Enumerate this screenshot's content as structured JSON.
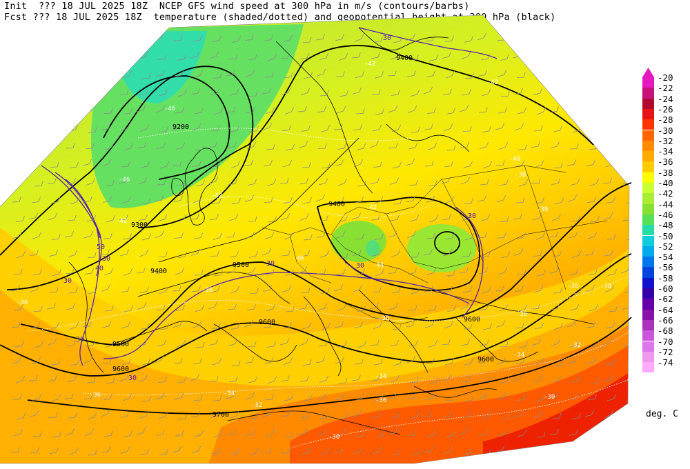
{
  "header": {
    "line1": "Init  ??? 18 JUL 2025 18Z  NCEP GFS wind speed at 300 hPa in m/s (contours/barbs)",
    "line2": "Fcst ??? 18 JUL 2025 18Z  temperature (shaded/dotted) and geopotential height at 300 hPa (black)"
  },
  "legend": {
    "unit": "deg. C",
    "entries": [
      {
        "label": "-20",
        "color": "#e619c0"
      },
      {
        "label": "-22",
        "color": "#c7127a"
      },
      {
        "label": "-24",
        "color": "#b00a2c"
      },
      {
        "label": "-26",
        "color": "#e61414"
      },
      {
        "label": "-28",
        "color": "#ff3300"
      },
      {
        "label": "-30",
        "color": "#ff6600"
      },
      {
        "label": "-32",
        "color": "#ff8c00"
      },
      {
        "label": "-34",
        "color": "#ffaa00"
      },
      {
        "label": "-36",
        "color": "#ffcc00"
      },
      {
        "label": "-38",
        "color": "#ffff00"
      },
      {
        "label": "-40",
        "color": "#ccff33"
      },
      {
        "label": "-42",
        "color": "#aaee33"
      },
      {
        "label": "-44",
        "color": "#88e033"
      },
      {
        "label": "-46",
        "color": "#55e055"
      },
      {
        "label": "-48",
        "color": "#22ddaa"
      },
      {
        "label": "-50",
        "color": "#11ccdd"
      },
      {
        "label": "-52",
        "color": "#00aaee"
      },
      {
        "label": "-54",
        "color": "#0077ee"
      },
      {
        "label": "-56",
        "color": "#0044dd"
      },
      {
        "label": "-58",
        "color": "#1111cc"
      },
      {
        "label": "-60",
        "color": "#3300aa"
      },
      {
        "label": "-62",
        "color": "#6600aa"
      },
      {
        "label": "-64",
        "color": "#8811aa"
      },
      {
        "label": "-66",
        "color": "#aa33bb"
      },
      {
        "label": "-68",
        "color": "#cc55dd"
      },
      {
        "label": "-70",
        "color": "#dd77ee"
      },
      {
        "label": "-72",
        "color": "#ee99ee"
      },
      {
        "label": "-74",
        "color": "#ffaaff"
      }
    ]
  },
  "map": {
    "height_labels": [
      "9200",
      "9300",
      "9400",
      "9400",
      "9500",
      "9500",
      "9600",
      "9600",
      "9600",
      "9700",
      "9400",
      "9600"
    ],
    "wind_labels": [
      "30",
      "30",
      "40",
      "30",
      "30",
      "50",
      "30",
      "30",
      "30",
      "30"
    ],
    "temp_labels": [
      "-46",
      "-42",
      "-42",
      "-42",
      "-40",
      "-42",
      "-38",
      "-36",
      "-36",
      "-34",
      "-34",
      "-32",
      "-30",
      "-30",
      "-30",
      "-38",
      "-40",
      "-42",
      "-44",
      "-46",
      "-36",
      "-34",
      "-36",
      "-32",
      "-34",
      "-36",
      "-38"
    ]
  }
}
